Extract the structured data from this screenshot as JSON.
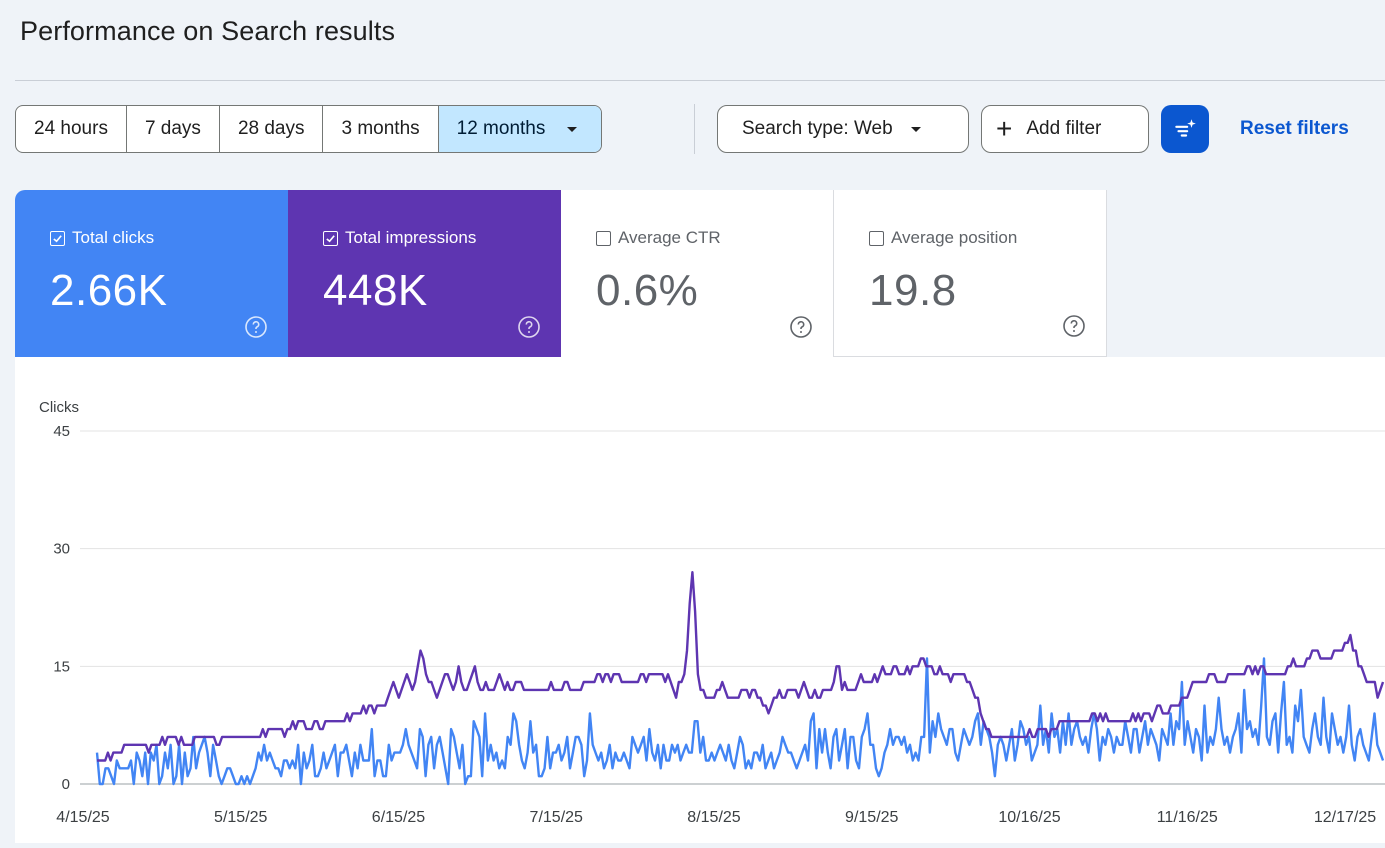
{
  "header": {
    "title": "Performance on Search results"
  },
  "toolbar": {
    "date_ranges": [
      "24 hours",
      "7 days",
      "28 days",
      "3 months",
      "12 months"
    ],
    "search_type": "Search type: Web",
    "add_filter": "Add filter",
    "reset": "Reset filters"
  },
  "metrics": {
    "clicks": {
      "label": "Total clicks",
      "value": "2.66K",
      "checked": true
    },
    "impressions": {
      "label": "Total impressions",
      "value": "448K",
      "checked": true
    },
    "ctr": {
      "label": "Average CTR",
      "value": "0.6%",
      "checked": false
    },
    "position": {
      "label": "Average position",
      "value": "19.8",
      "checked": false
    }
  },
  "colors": {
    "clicks": "#4285f4",
    "impressions": "#5e35b1",
    "accent": "#0b57d0",
    "selected": "#c2e7ff"
  },
  "chart_data": {
    "type": "line",
    "ylabel": "Clicks",
    "yticks": [
      "45",
      "30",
      "15",
      "0"
    ],
    "ylim": [
      0,
      45
    ],
    "xticks": [
      "4/15/25",
      "5/15/25",
      "6/15/25",
      "7/15/25",
      "8/15/25",
      "9/15/25",
      "10/16/25",
      "11/16/25",
      "12/17/25"
    ],
    "grid": true,
    "series": [
      {
        "values": [
          4,
          0,
          0,
          2,
          2,
          1,
          0,
          3,
          2,
          2,
          2,
          2,
          3,
          0,
          4,
          3,
          1,
          4,
          0,
          4,
          3,
          5,
          0,
          1,
          4,
          2,
          5,
          0,
          1,
          5,
          0,
          4,
          1,
          2,
          6,
          2,
          4,
          5,
          6,
          4,
          1,
          5,
          3,
          1,
          0,
          1,
          2,
          2,
          1,
          0,
          0,
          1,
          0,
          1,
          0,
          1,
          2,
          4,
          3,
          5,
          3,
          4,
          3,
          2,
          2,
          1,
          3,
          3,
          2,
          3,
          2,
          5,
          0,
          4,
          2,
          3,
          5,
          1,
          1,
          2,
          4,
          2,
          3,
          4,
          5,
          1,
          4,
          4,
          5,
          3,
          1,
          4,
          2,
          5,
          3,
          3,
          3,
          7,
          1,
          3,
          3,
          1,
          1,
          5,
          3,
          4,
          4,
          4,
          5,
          7,
          5,
          4,
          3,
          2,
          7,
          6,
          1,
          5,
          6,
          2,
          5,
          6,
          4,
          2,
          0,
          7,
          6,
          4,
          2,
          5,
          0,
          1,
          1,
          8,
          7,
          6,
          1,
          9,
          3,
          5,
          3,
          4,
          2,
          3,
          2,
          6,
          5,
          9,
          8,
          5,
          3,
          2,
          4,
          8,
          4,
          5,
          1,
          1,
          2,
          6,
          2,
          4,
          4,
          5,
          3,
          4,
          6,
          2,
          4,
          6,
          6,
          5,
          1,
          3,
          9,
          5,
          4,
          3,
          4,
          2,
          3,
          5,
          2,
          4,
          3,
          3,
          4,
          3,
          2,
          6,
          5,
          4,
          5,
          6,
          3,
          7,
          4,
          3,
          5,
          2,
          5,
          3,
          3,
          5,
          4,
          5,
          3,
          4,
          5,
          4,
          4,
          8,
          8,
          4,
          6,
          3,
          3,
          4,
          3,
          4,
          5,
          4,
          3,
          5,
          3,
          2,
          4,
          6,
          5,
          2,
          3,
          2,
          4,
          4,
          3,
          5,
          2,
          3,
          4,
          2,
          3,
          4,
          6,
          5,
          4,
          4,
          3,
          2,
          3,
          4,
          5,
          3,
          8,
          9,
          2,
          7,
          4,
          7,
          4,
          2,
          6,
          7,
          3,
          5,
          7,
          2,
          6,
          6,
          3,
          2,
          6,
          7,
          9,
          5,
          5,
          2,
          1,
          2,
          4,
          5,
          7,
          5,
          6,
          6,
          5,
          6,
          4,
          5,
          3,
          4,
          3,
          6,
          6,
          16,
          4,
          8,
          6,
          9,
          7,
          6,
          5,
          7,
          7,
          4,
          3,
          5,
          7,
          6,
          5,
          6,
          8,
          9,
          5,
          8,
          7,
          6,
          4,
          1,
          5,
          6,
          5,
          3,
          5,
          7,
          3,
          5,
          8,
          7,
          5,
          6,
          3,
          4,
          5,
          10,
          5,
          7,
          4,
          9,
          6,
          7,
          4,
          8,
          5,
          9,
          5,
          7,
          8,
          6,
          5,
          6,
          4,
          7,
          9,
          7,
          3,
          6,
          5,
          7,
          6,
          4,
          6,
          5,
          5,
          8,
          6,
          4,
          7,
          7,
          4,
          6,
          8,
          5,
          7,
          6,
          5,
          3,
          7,
          6,
          5,
          9,
          5,
          8,
          7,
          13,
          5,
          8,
          6,
          4,
          7,
          6,
          3,
          10,
          4,
          6,
          5,
          7,
          11,
          7,
          5,
          6,
          4,
          6,
          7,
          9,
          4,
          12,
          7,
          8,
          6,
          7,
          5,
          10,
          16,
          6,
          5,
          8,
          9,
          4,
          9,
          13,
          5,
          6,
          4,
          10,
          8,
          12,
          6,
          5,
          4,
          7,
          9,
          6,
          5,
          11,
          6,
          4,
          9,
          7,
          5,
          6,
          4,
          6,
          10,
          5,
          3,
          6,
          7,
          5,
          4,
          3,
          6,
          9,
          5,
          4,
          3
        ],
        "color": "#4285f4"
      },
      {
        "values": [
          3,
          3,
          3,
          3,
          4,
          3,
          4,
          4,
          4,
          4,
          5,
          5,
          5,
          5,
          5,
          5,
          5,
          5,
          5,
          4,
          5,
          5,
          5,
          5,
          6,
          5,
          6,
          6,
          6,
          6,
          5,
          6,
          5,
          5,
          5,
          5,
          6,
          6,
          6,
          6,
          6,
          6,
          6,
          6,
          5,
          5,
          6,
          6,
          6,
          6,
          6,
          6,
          6,
          6,
          6,
          6,
          6,
          6,
          6,
          6,
          6,
          7,
          6,
          7,
          7,
          7,
          7,
          7,
          7,
          6,
          7,
          7,
          8,
          7,
          8,
          8,
          8,
          7,
          7,
          7,
          8,
          8,
          7,
          7,
          8,
          8,
          8,
          8,
          8,
          8,
          8,
          8,
          9,
          8,
          9,
          9,
          9,
          9,
          10,
          9,
          10,
          10,
          9,
          10,
          10,
          10,
          10,
          11,
          12,
          13,
          12,
          11,
          12,
          13,
          14,
          13,
          12,
          13,
          15,
          17,
          16,
          14,
          13,
          13,
          12,
          11,
          12,
          13,
          14,
          14,
          13,
          12,
          13,
          15,
          13,
          12,
          12,
          13,
          14,
          15,
          13,
          12,
          12,
          13,
          12,
          12,
          12,
          13,
          14,
          13,
          12,
          13,
          12,
          12,
          13,
          13,
          13,
          12,
          12,
          12,
          12,
          12,
          12,
          12,
          12,
          12,
          12,
          13,
          12,
          12,
          12,
          12,
          13,
          13,
          12,
          12,
          12,
          12,
          12,
          13,
          13,
          13,
          13,
          13,
          14,
          14,
          13,
          14,
          14,
          13,
          14,
          14,
          14,
          13,
          13,
          13,
          13,
          13,
          13,
          13,
          14,
          14,
          13,
          14,
          14,
          14,
          14,
          14,
          14,
          13,
          14,
          13,
          12,
          11,
          13,
          13,
          14,
          17,
          23,
          27,
          22,
          14,
          12,
          12,
          11,
          11,
          11,
          11,
          12,
          12,
          13,
          12,
          11,
          11,
          11,
          11,
          11,
          12,
          12,
          12,
          11,
          12,
          12,
          11,
          11,
          10,
          10,
          9,
          10,
          11,
          11,
          12,
          11,
          11,
          12,
          12,
          12,
          12,
          11,
          12,
          13,
          12,
          11,
          11,
          12,
          11,
          11,
          12,
          12,
          12,
          12,
          13,
          15,
          15,
          12,
          13,
          12,
          12,
          12,
          12,
          13,
          14,
          13,
          13,
          13,
          13,
          14,
          13,
          14,
          15,
          14,
          14,
          14,
          15,
          15,
          14,
          14,
          14,
          15,
          14,
          15,
          15,
          15,
          16,
          16,
          15,
          15,
          15,
          14,
          14,
          15,
          14,
          14,
          14,
          13,
          14,
          14,
          14,
          14,
          14,
          13,
          13,
          12,
          11,
          11,
          9,
          8,
          7,
          7,
          6,
          6,
          6,
          6,
          6,
          6,
          6,
          6,
          6,
          6,
          6,
          6,
          6,
          6,
          7,
          6,
          6,
          7,
          7,
          7,
          7,
          6,
          7,
          7,
          7,
          8,
          8,
          8,
          8,
          8,
          8,
          8,
          8,
          8,
          8,
          8,
          8,
          9,
          9,
          8,
          9,
          8,
          9,
          8,
          8,
          8,
          8,
          8,
          8,
          8,
          8,
          8,
          9,
          8,
          9,
          8,
          9,
          9,
          9,
          8,
          9,
          10,
          10,
          9,
          9,
          9,
          10,
          10,
          10,
          10,
          11,
          11,
          11,
          12,
          13,
          13,
          13,
          13,
          13,
          13,
          14,
          14,
          14,
          13,
          13,
          13,
          13,
          14,
          14,
          14,
          14,
          14,
          14,
          14,
          15,
          15,
          14,
          15,
          14,
          15,
          15,
          14,
          14,
          14,
          14,
          14,
          14,
          14,
          14,
          15,
          15,
          16,
          15,
          15,
          15,
          15,
          16,
          16,
          17,
          17,
          17,
          16,
          16,
          16,
          16,
          16,
          17,
          17,
          17,
          17,
          18,
          18,
          19,
          17,
          17,
          15,
          15,
          14,
          13,
          13,
          13,
          13,
          11,
          12,
          13
        ],
        "color": "#5e35b1"
      }
    ]
  }
}
